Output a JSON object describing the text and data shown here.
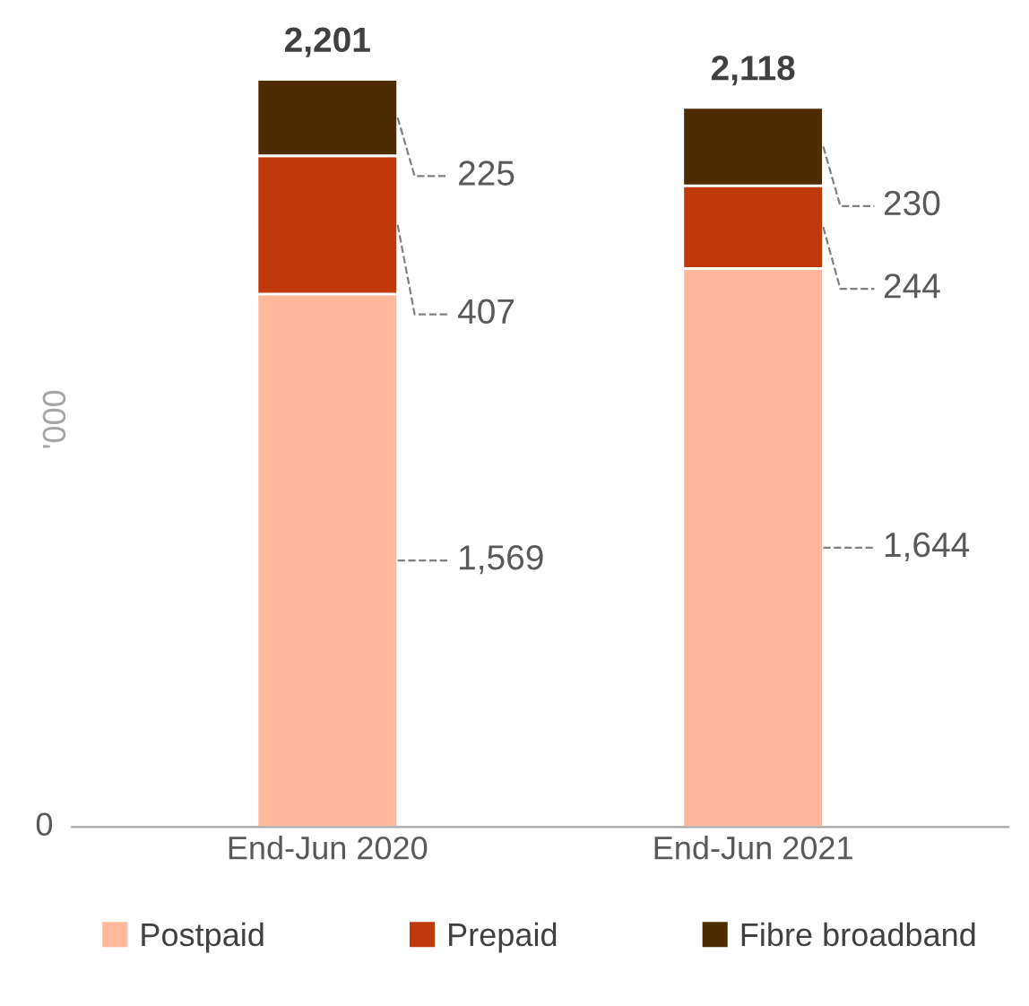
{
  "chart_data": {
    "type": "bar",
    "stacked": true,
    "ylabel": "'000",
    "categories": [
      "End-Jun 2020",
      "End-Jun 2021"
    ],
    "series": [
      {
        "name": "Postpaid",
        "color": "#ffb899",
        "values": [
          1569,
          1644
        ],
        "value_labels": [
          "1,569",
          "1,644"
        ]
      },
      {
        "name": "Prepaid",
        "color": "#c0390b",
        "values": [
          407,
          244
        ],
        "value_labels": [
          "407",
          "244"
        ]
      },
      {
        "name": "Fibre broadband",
        "color": "#4d2c00",
        "values": [
          225,
          230
        ],
        "value_labels": [
          "225",
          "230"
        ]
      }
    ],
    "totals": [
      "2,201",
      "2,118"
    ],
    "annotations": [
      "0"
    ],
    "grid": false,
    "legend": "bottom"
  }
}
